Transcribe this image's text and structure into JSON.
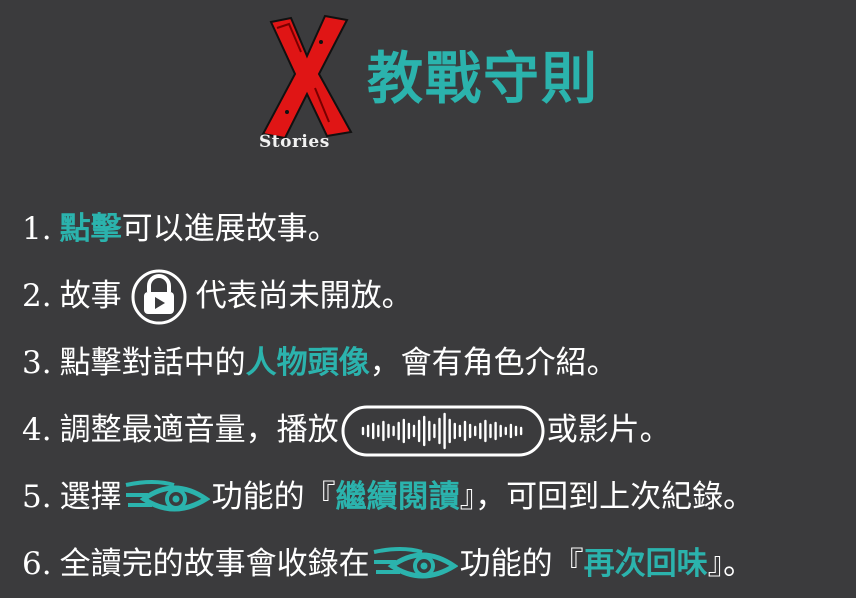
{
  "header": {
    "logo_text": "Stories",
    "title": "教戰守則"
  },
  "colors": {
    "background": "#3b3b3d",
    "accent": "#2bb3ad",
    "logo_red": "#e01515",
    "text": "#ffffff"
  },
  "icons": [
    "lock-play-icon",
    "audio-waveform-icon",
    "eye-swoosh-icon"
  ],
  "rules": [
    {
      "num": "1.",
      "parts": [
        {
          "text": "點擊",
          "hl": true
        },
        {
          "text": "可以進展故事。"
        }
      ]
    },
    {
      "num": "2.",
      "parts": [
        {
          "text": "故事"
        },
        {
          "icon": "lock-play-icon"
        },
        {
          "text": "代表尚未開放。"
        }
      ]
    },
    {
      "num": "3.",
      "parts": [
        {
          "text": "點擊對話中的"
        },
        {
          "text": "人物頭像",
          "hl": true
        },
        {
          "text": "，會有角色介紹。"
        }
      ]
    },
    {
      "num": "4.",
      "parts": [
        {
          "text": "調整最適音量，播放"
        },
        {
          "icon": "audio-waveform-icon"
        },
        {
          "text": "或影片。"
        }
      ]
    },
    {
      "num": "5.",
      "parts": [
        {
          "text": "選擇"
        },
        {
          "icon": "eye-swoosh-icon"
        },
        {
          "text": "功能的『"
        },
        {
          "text": "繼續閱讀",
          "hl": true
        },
        {
          "text": "』，可回到上次紀錄。"
        }
      ]
    },
    {
      "num": "6.",
      "parts": [
        {
          "text": "全讀完的故事會收錄在"
        },
        {
          "icon": "eye-swoosh-icon"
        },
        {
          "text": "功能的『"
        },
        {
          "text": "再次回味",
          "hl": true
        },
        {
          "text": "』。"
        }
      ]
    }
  ]
}
